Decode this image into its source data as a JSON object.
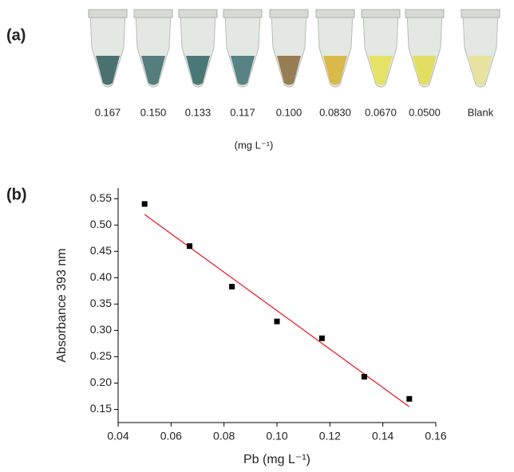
{
  "panel_a": {
    "label": "(a)",
    "samples": [
      "0.167",
      "0.150",
      "0.133",
      "0.117",
      "0.100",
      "0.0830",
      "0.0670",
      "0.0500"
    ],
    "blank": "Blank",
    "unit": "(mg L⁻¹)"
  },
  "chart_data": {
    "type": "scatter",
    "panel_label": "(b)",
    "x_label": "Pb (mg L⁻¹)",
    "y_label": "Absorbance 393 nm",
    "x": [
      0.05,
      0.067,
      0.083,
      0.1,
      0.117,
      0.133,
      0.15
    ],
    "values": [
      0.54,
      0.46,
      0.383,
      0.317,
      0.285,
      0.212,
      0.17
    ],
    "color": "#000000",
    "fit_line": {
      "x": [
        0.05,
        0.15
      ],
      "values": [
        0.52,
        0.155
      ],
      "color": "#e8141c"
    },
    "xlim": [
      0.04,
      0.16
    ],
    "ylim": [
      0.125,
      0.57
    ],
    "xticks": [
      0.04,
      0.06,
      0.08,
      {
        "value": 0.1,
        "label": "0.10"
      },
      0.12,
      0.14,
      0.16
    ],
    "yticks": [
      0.15,
      {
        "value": 0.2,
        "label": "0.20"
      },
      0.25,
      {
        "value": 0.3,
        "label": "0.30"
      },
      0.35,
      {
        "value": 0.4,
        "label": "0.40"
      },
      0.45,
      {
        "value": 0.5,
        "label": "0.50"
      },
      0.55
    ]
  }
}
